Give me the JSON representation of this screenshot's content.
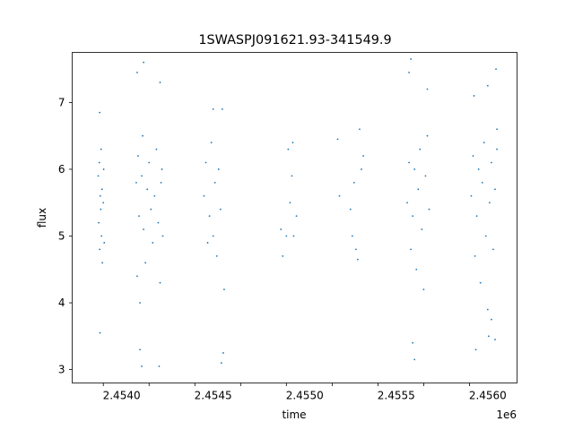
{
  "chart_data": {
    "type": "scatter",
    "title": "1SWASPJ091621.93-341549.9",
    "xlabel": "time",
    "ylabel": "flux",
    "x_offset_label": "1e6",
    "xlim": [
      2453730,
      2456160
    ],
    "ylim": [
      2.8,
      7.75
    ],
    "x_ticks": [
      2453900,
      2454150,
      2454400,
      2454650,
      2454900,
      2455150,
      2455400,
      2455650,
      2455900
    ],
    "x_tick_labels": [
      "2.4540",
      "2.4545",
      "2.4550",
      "2.4555",
      "2.4560"
    ],
    "x_tick_label_values": [
      2454000,
      2454500,
      2455000,
      2455500,
      2456000
    ],
    "y_tick_values": [
      3,
      4,
      5,
      6,
      7
    ],
    "y_tick_labels": [
      "3",
      "4",
      "5",
      "6",
      "7"
    ],
    "grid": false,
    "marker_color": "#1f77b4",
    "series": [
      {
        "points": [
          [
            2453872,
            5.9
          ],
          [
            2453875,
            5.2
          ],
          [
            2453878,
            6.1
          ],
          [
            2453880,
            4.8
          ],
          [
            2453883,
            5.6
          ],
          [
            2453886,
            5.4
          ],
          [
            2453888,
            6.3
          ],
          [
            2453890,
            5.0
          ],
          [
            2453893,
            5.7
          ],
          [
            2453895,
            4.6
          ],
          [
            2453880,
            6.85
          ],
          [
            2453882,
            3.55
          ],
          [
            2453900,
            5.5
          ],
          [
            2453902,
            6.0
          ],
          [
            2453905,
            4.9
          ],
          [
            2454080,
            5.8
          ],
          [
            2454085,
            4.4
          ],
          [
            2454090,
            6.2
          ],
          [
            2454095,
            5.3
          ],
          [
            2454100,
            4.0
          ],
          [
            2454110,
            5.9
          ],
          [
            2454115,
            6.5
          ],
          [
            2454120,
            5.1
          ],
          [
            2454130,
            4.6
          ],
          [
            2454140,
            5.7
          ],
          [
            2454150,
            6.1
          ],
          [
            2454160,
            5.4
          ],
          [
            2454170,
            4.9
          ],
          [
            2454180,
            5.6
          ],
          [
            2454190,
            6.3
          ],
          [
            2454200,
            5.2
          ],
          [
            2454210,
            4.3
          ],
          [
            2454215,
            5.8
          ],
          [
            2454220,
            6.0
          ],
          [
            2454225,
            5.0
          ],
          [
            2454085,
            7.45
          ],
          [
            2454120,
            7.6
          ],
          [
            2454210,
            7.3
          ],
          [
            2454100,
            3.3
          ],
          [
            2454110,
            3.05
          ],
          [
            2454205,
            3.05
          ],
          [
            2454450,
            5.6
          ],
          [
            2454460,
            6.1
          ],
          [
            2454470,
            4.9
          ],
          [
            2454480,
            5.3
          ],
          [
            2454490,
            6.4
          ],
          [
            2454500,
            5.0
          ],
          [
            2454510,
            5.8
          ],
          [
            2454520,
            4.7
          ],
          [
            2454530,
            6.0
          ],
          [
            2454540,
            5.4
          ],
          [
            2454550,
            6.9
          ],
          [
            2454560,
            4.2
          ],
          [
            2454545,
            3.1
          ],
          [
            2454555,
            3.25
          ],
          [
            2454500,
            6.9
          ],
          [
            2454870,
            5.1
          ],
          [
            2454880,
            4.7
          ],
          [
            2454910,
            6.3
          ],
          [
            2454920,
            5.5
          ],
          [
            2454930,
            5.9
          ],
          [
            2454940,
            5.0
          ],
          [
            2454955,
            5.3
          ],
          [
            2454900,
            5.0
          ],
          [
            2454935,
            6.4
          ],
          [
            2455180,
            6.45
          ],
          [
            2455190,
            5.6
          ],
          [
            2455250,
            5.4
          ],
          [
            2455260,
            5.0
          ],
          [
            2455270,
            5.8
          ],
          [
            2455280,
            4.8
          ],
          [
            2455290,
            4.65
          ],
          [
            2455300,
            6.6
          ],
          [
            2455310,
            6.0
          ],
          [
            2455320,
            6.2
          ],
          [
            2455560,
            5.5
          ],
          [
            2455570,
            6.1
          ],
          [
            2455580,
            4.8
          ],
          [
            2455590,
            5.3
          ],
          [
            2455600,
            6.0
          ],
          [
            2455610,
            4.5
          ],
          [
            2455620,
            5.7
          ],
          [
            2455630,
            6.3
          ],
          [
            2455640,
            5.1
          ],
          [
            2455650,
            4.2
          ],
          [
            2455660,
            5.9
          ],
          [
            2455670,
            6.5
          ],
          [
            2455680,
            5.4
          ],
          [
            2455570,
            7.45
          ],
          [
            2455580,
            7.65
          ],
          [
            2455590,
            3.4
          ],
          [
            2455600,
            3.15
          ],
          [
            2455670,
            7.2
          ],
          [
            2455910,
            5.6
          ],
          [
            2455920,
            6.2
          ],
          [
            2455930,
            4.7
          ],
          [
            2455940,
            5.3
          ],
          [
            2455950,
            6.0
          ],
          [
            2455960,
            4.3
          ],
          [
            2455970,
            5.8
          ],
          [
            2455980,
            6.4
          ],
          [
            2455990,
            5.0
          ],
          [
            2456000,
            3.9
          ],
          [
            2456010,
            5.5
          ],
          [
            2456020,
            6.1
          ],
          [
            2456030,
            4.8
          ],
          [
            2456040,
            5.7
          ],
          [
            2456050,
            6.3
          ],
          [
            2455925,
            7.1
          ],
          [
            2456000,
            7.25
          ],
          [
            2456045,
            7.5
          ],
          [
            2456050,
            6.6
          ],
          [
            2455935,
            3.3
          ],
          [
            2456005,
            3.5
          ],
          [
            2456040,
            3.45
          ],
          [
            2456020,
            3.75
          ]
        ]
      }
    ]
  }
}
